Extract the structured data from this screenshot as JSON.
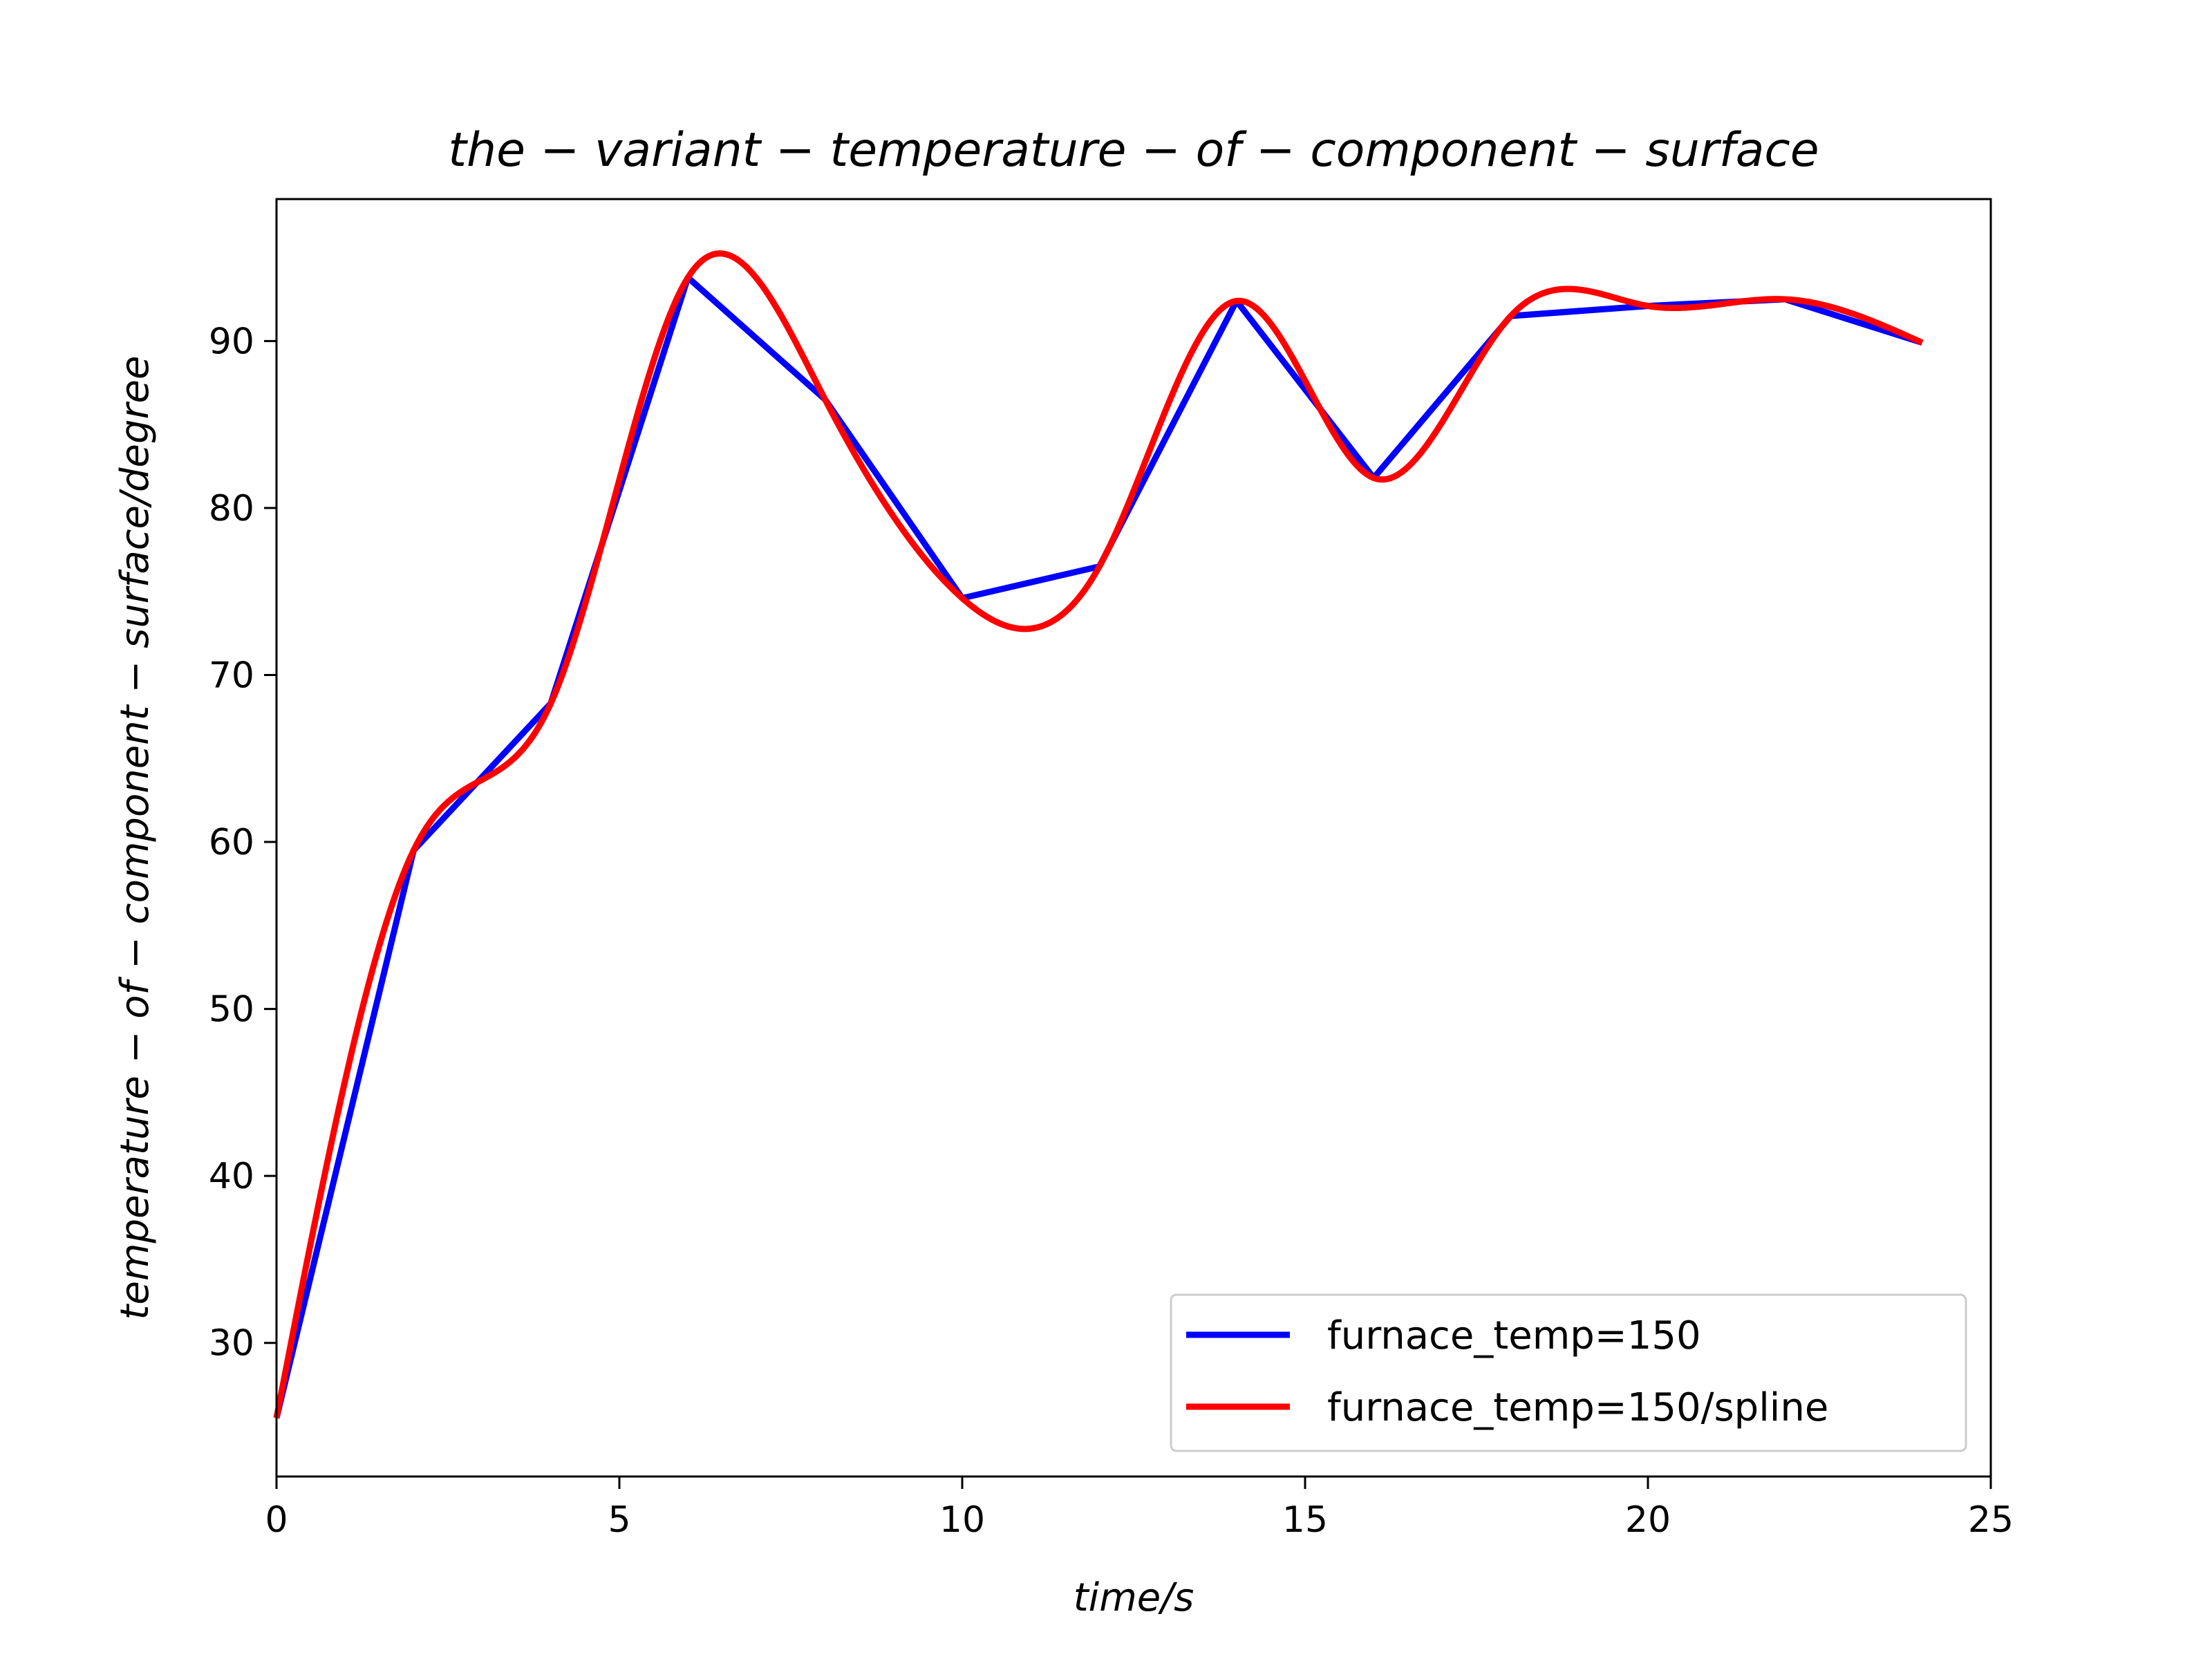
{
  "chart_data": {
    "type": "line",
    "title": "the − variant − temperature − of − component − surface",
    "xlabel": "time/s",
    "ylabel": "temperature − of − component − surface/degree",
    "xlim": [
      0,
      25
    ],
    "ylim": [
      22,
      98.5
    ],
    "xticks": [
      0,
      5,
      10,
      15,
      20,
      25
    ],
    "yticks": [
      30,
      40,
      50,
      60,
      70,
      80,
      90
    ],
    "grid": false,
    "legend_position": "lower-right",
    "series": [
      {
        "name": "furnace_temp=150",
        "color": "#0000ff",
        "style": "linear",
        "x": [
          0,
          2,
          4,
          6,
          8,
          10,
          12,
          14,
          16,
          18,
          20,
          22,
          24
        ],
        "y": [
          25.5,
          59.5,
          68.3,
          93.8,
          86.5,
          74.6,
          76.5,
          92.4,
          81.8,
          91.5,
          92.1,
          92.5,
          89.9
        ]
      },
      {
        "name": "furnace_temp=150/spline",
        "color": "#ff0000",
        "style": "spline",
        "x": [
          0,
          2,
          4,
          6,
          8,
          10,
          12,
          14,
          16,
          18,
          20,
          22,
          24
        ],
        "y": [
          25.5,
          59.5,
          68.3,
          93.8,
          86.5,
          74.6,
          76.5,
          92.4,
          81.8,
          91.5,
          92.1,
          92.5,
          89.9
        ]
      }
    ]
  }
}
